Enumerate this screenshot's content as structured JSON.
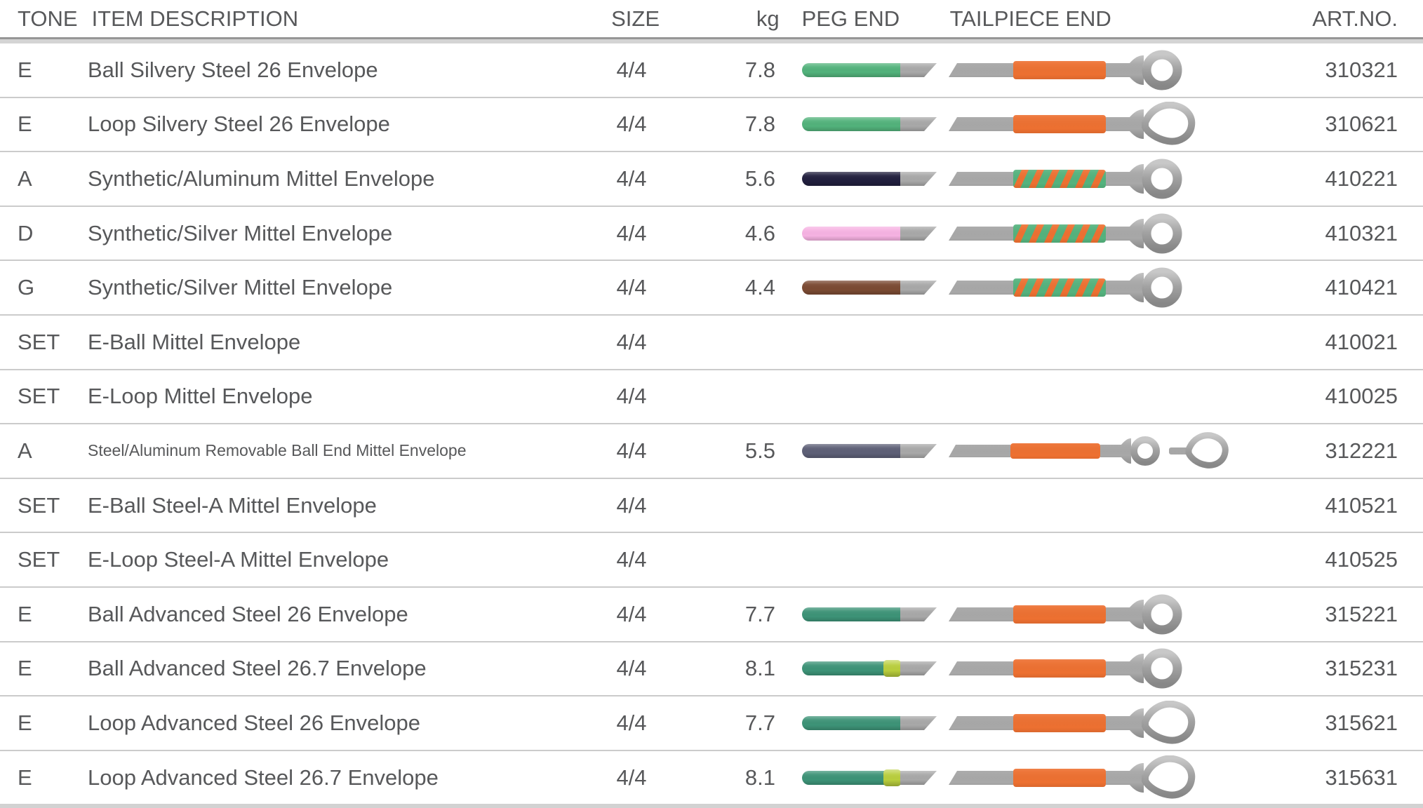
{
  "table": {
    "columns": {
      "tone": "TONE",
      "description": "ITEM DESCRIPTION",
      "size": "SIZE",
      "kg": "kg",
      "peg_end": "PEG END",
      "tailpiece_end": "TAILPIECE END",
      "art_no": "ART.NO."
    },
    "palette": {
      "green": "#52b27b",
      "teal": "#3d9377",
      "navy": "#211f3e",
      "pink": "#f6b2e2",
      "brown": "#7b4a33",
      "slate": "#5d5f76",
      "yellow_band": "#b9ce3d",
      "orange": "#ed7031",
      "spiral_green": "#54b27d",
      "metal_gray": "#a8a8a8"
    },
    "rows": [
      {
        "tone": "E",
        "description": "Ball Silvery Steel 26 Envelope",
        "size": "4/4",
        "kg": "7.8",
        "art_no": "310321",
        "peg": {
          "color": "green"
        },
        "tail": {
          "end": "ball",
          "winding": "orange"
        }
      },
      {
        "tone": "E",
        "description": "Loop Silvery Steel 26 Envelope",
        "size": "4/4",
        "kg": "7.8",
        "art_no": "310621",
        "peg": {
          "color": "green"
        },
        "tail": {
          "end": "loop",
          "winding": "orange"
        }
      },
      {
        "tone": "A",
        "description": "Synthetic/Aluminum Mittel Envelope",
        "size": "4/4",
        "kg": "5.6",
        "art_no": "410221",
        "peg": {
          "color": "navy"
        },
        "tail": {
          "end": "ball",
          "winding": "spiral"
        }
      },
      {
        "tone": "D",
        "description": "Synthetic/Silver Mittel Envelope",
        "size": "4/4",
        "kg": "4.6",
        "art_no": "410321",
        "peg": {
          "color": "pink"
        },
        "tail": {
          "end": "ball",
          "winding": "spiral"
        }
      },
      {
        "tone": "G",
        "description": "Synthetic/Silver Mittel Envelope",
        "size": "4/4",
        "kg": "4.4",
        "art_no": "410421",
        "peg": {
          "color": "brown"
        },
        "tail": {
          "end": "ball",
          "winding": "spiral"
        }
      },
      {
        "tone": "SET",
        "description": "E-Ball Mittel Envelope",
        "size": "4/4",
        "kg": "",
        "art_no": "410021",
        "peg": null,
        "tail": null
      },
      {
        "tone": "SET",
        "description": "E-Loop Mittel Envelope",
        "size": "4/4",
        "kg": "",
        "art_no": "410025",
        "peg": null,
        "tail": null
      },
      {
        "tone": "A",
        "description": "Steel/Aluminum Removable Ball End Mittel Envelope",
        "size": "4/4",
        "kg": "5.5",
        "art_no": "312221",
        "peg": {
          "color": "slate"
        },
        "tail": {
          "end": "ball-loop",
          "winding": "orange"
        }
      },
      {
        "tone": "SET",
        "description": "E-Ball Steel-A Mittel Envelope",
        "size": "4/4",
        "kg": "",
        "art_no": "410521",
        "peg": null,
        "tail": null
      },
      {
        "tone": "SET",
        "description": "E-Loop Steel-A Mittel Envelope",
        "size": "4/4",
        "kg": "",
        "art_no": "410525",
        "peg": null,
        "tail": null
      },
      {
        "tone": "E",
        "description": "Ball Advanced Steel 26 Envelope",
        "size": "4/4",
        "kg": "7.7",
        "art_no": "315221",
        "peg": {
          "color": "teal"
        },
        "tail": {
          "end": "ball",
          "winding": "orange"
        }
      },
      {
        "tone": "E",
        "description": "Ball Advanced Steel 26.7 Envelope",
        "size": "4/4",
        "kg": "8.1",
        "art_no": "315231",
        "peg": {
          "color": "teal",
          "band": "yellow_band"
        },
        "tail": {
          "end": "ball",
          "winding": "orange"
        }
      },
      {
        "tone": "E",
        "description": "Loop Advanced Steel 26 Envelope",
        "size": "4/4",
        "kg": "7.7",
        "art_no": "315621",
        "peg": {
          "color": "teal"
        },
        "tail": {
          "end": "loop",
          "winding": "orange"
        }
      },
      {
        "tone": "E",
        "description": "Loop Advanced Steel 26.7 Envelope",
        "size": "4/4",
        "kg": "8.1",
        "art_no": "315631",
        "peg": {
          "color": "teal",
          "band": "yellow_band"
        },
        "tail": {
          "end": "loop",
          "winding": "orange"
        }
      }
    ]
  }
}
